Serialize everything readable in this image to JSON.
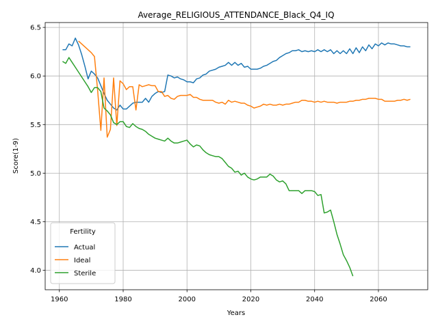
{
  "chart_data": {
    "type": "line",
    "title": "Average_RELIGIOUS_ATTENDANCE_Black_Q4_IQ",
    "x_label": "Years",
    "y_label": "Score(1-9)",
    "legend_title": "Fertility",
    "legend": "lower left",
    "grid": true,
    "xlim": [
      1955.55,
      2075.45
    ],
    "ylim": [
      3.8,
      6.55
    ],
    "xticks": [
      1960,
      1980,
      2000,
      2020,
      2040,
      2060
    ],
    "yticks": [
      {
        "value": 4,
        "label": "4.0"
      },
      4.5,
      {
        "value": 5,
        "label": "5.0"
      },
      5.5,
      {
        "value": 6,
        "label": "6.0"
      },
      6.5
    ],
    "x": [
      1961,
      1962,
      1963,
      1964,
      1965,
      1966,
      1967,
      1968,
      1969,
      1970,
      1971,
      1972,
      1973,
      1974,
      1975,
      1976,
      1977,
      1978,
      1979,
      1980,
      1981,
      1982,
      1983,
      1984,
      1985,
      1986,
      1987,
      1988,
      1989,
      1990,
      1991,
      1992,
      1993,
      1994,
      1995,
      1996,
      1997,
      1998,
      1999,
      2000,
      2001,
      2002,
      2003,
      2004,
      2005,
      2006,
      2007,
      2008,
      2009,
      2010,
      2011,
      2012,
      2013,
      2014,
      2015,
      2016,
      2017,
      2018,
      2019,
      2020,
      2021,
      2022,
      2023,
      2024,
      2025,
      2026,
      2027,
      2028,
      2029,
      2030,
      2031,
      2032,
      2033,
      2034,
      2035,
      2036,
      2037,
      2038,
      2039,
      2040,
      2041,
      2042,
      2043,
      2044,
      2045,
      2046,
      2047,
      2048,
      2049,
      2050,
      2051,
      2052,
      2053,
      2054,
      2055,
      2056,
      2057,
      2058,
      2059,
      2060,
      2061,
      2062,
      2063,
      2064,
      2065,
      2066,
      2067,
      2068,
      2069,
      2070
    ],
    "series": [
      {
        "name": "Actual",
        "color": "#1f77b4",
        "values": [
          6.27,
          6.27,
          6.33,
          6.31,
          6.39,
          6.32,
          6.22,
          6.1,
          5.97,
          6.05,
          6.02,
          5.98,
          5.9,
          5.82,
          5.75,
          5.71,
          5.67,
          5.65,
          5.7,
          5.66,
          5.66,
          5.69,
          5.72,
          5.73,
          5.73,
          5.73,
          5.77,
          5.73,
          5.79,
          5.82,
          5.84,
          5.83,
          5.84,
          6.01,
          6.0,
          5.98,
          5.99,
          5.97,
          5.96,
          5.94,
          5.94,
          5.93,
          5.97,
          5.98,
          6.01,
          6.02,
          6.05,
          6.06,
          6.07,
          6.09,
          6.1,
          6.11,
          6.14,
          6.11,
          6.14,
          6.11,
          6.13,
          6.09,
          6.1,
          6.07,
          6.07,
          6.07,
          6.08,
          6.1,
          6.11,
          6.13,
          6.15,
          6.16,
          6.19,
          6.21,
          6.23,
          6.24,
          6.26,
          6.26,
          6.27,
          6.25,
          6.26,
          6.25,
          6.26,
          6.25,
          6.27,
          6.25,
          6.27,
          6.25,
          6.27,
          6.23,
          6.26,
          6.23,
          6.26,
          6.23,
          6.28,
          6.23,
          6.29,
          6.24,
          6.3,
          6.26,
          6.32,
          6.28,
          6.33,
          6.31,
          6.34,
          6.32,
          6.34,
          6.33,
          6.33,
          6.32,
          6.31,
          6.31,
          6.3,
          6.3
        ]
      },
      {
        "name": "Ideal",
        "color": "#ff7f0e",
        "values": [
          null,
          null,
          null,
          null,
          null,
          6.36,
          6.33,
          6.3,
          6.27,
          6.24,
          6.2,
          5.85,
          5.44,
          5.98,
          5.37,
          5.45,
          5.98,
          5.49,
          5.95,
          5.92,
          5.86,
          5.89,
          5.89,
          5.65,
          5.91,
          5.89,
          5.9,
          5.91,
          5.9,
          5.9,
          5.84,
          5.84,
          5.79,
          5.8,
          5.77,
          5.76,
          5.79,
          5.8,
          5.8,
          5.8,
          5.81,
          5.78,
          5.78,
          5.76,
          5.75,
          5.75,
          5.75,
          5.75,
          5.73,
          5.72,
          5.73,
          5.71,
          5.75,
          5.73,
          5.74,
          5.73,
          5.72,
          5.72,
          5.7,
          5.69,
          5.67,
          5.68,
          5.69,
          5.71,
          5.7,
          5.71,
          5.7,
          5.7,
          5.71,
          5.7,
          5.71,
          5.71,
          5.72,
          5.73,
          5.73,
          5.75,
          5.75,
          5.74,
          5.74,
          5.73,
          5.74,
          5.73,
          5.74,
          5.73,
          5.73,
          5.73,
          5.72,
          5.73,
          5.73,
          5.73,
          5.74,
          5.74,
          5.75,
          5.75,
          5.76,
          5.76,
          5.77,
          5.77,
          5.77,
          5.76,
          5.76,
          5.74,
          5.74,
          5.74,
          5.74,
          5.75,
          5.75,
          5.76,
          5.75,
          5.76
        ]
      },
      {
        "name": "Sterile",
        "color": "#2ca02c",
        "values": [
          6.15,
          6.13,
          6.19,
          6.14,
          6.09,
          6.04,
          5.99,
          5.94,
          5.89,
          5.83,
          5.88,
          5.88,
          5.84,
          5.67,
          5.64,
          5.6,
          5.52,
          5.5,
          5.53,
          5.53,
          5.48,
          5.47,
          5.51,
          5.48,
          5.46,
          5.45,
          5.43,
          5.4,
          5.38,
          5.36,
          5.35,
          5.34,
          5.33,
          5.36,
          5.33,
          5.31,
          5.31,
          5.32,
          5.33,
          5.34,
          5.3,
          5.27,
          5.29,
          5.28,
          5.24,
          5.21,
          5.19,
          5.18,
          5.17,
          5.17,
          5.15,
          5.11,
          5.07,
          5.05,
          5.01,
          5.02,
          4.98,
          5.0,
          4.96,
          4.94,
          4.93,
          4.94,
          4.96,
          4.96,
          4.96,
          4.99,
          4.97,
          4.93,
          4.91,
          4.92,
          4.89,
          4.82,
          4.82,
          4.82,
          4.82,
          4.79,
          4.82,
          4.82,
          4.82,
          4.81,
          4.77,
          4.78,
          4.59,
          4.6,
          4.62,
          4.5,
          4.37,
          4.27,
          4.16,
          4.1,
          4.03,
          3.94,
          null,
          null,
          null,
          null,
          null,
          null,
          null,
          null,
          null,
          null,
          null,
          null,
          null,
          null,
          null,
          null,
          null,
          null
        ]
      }
    ]
  }
}
